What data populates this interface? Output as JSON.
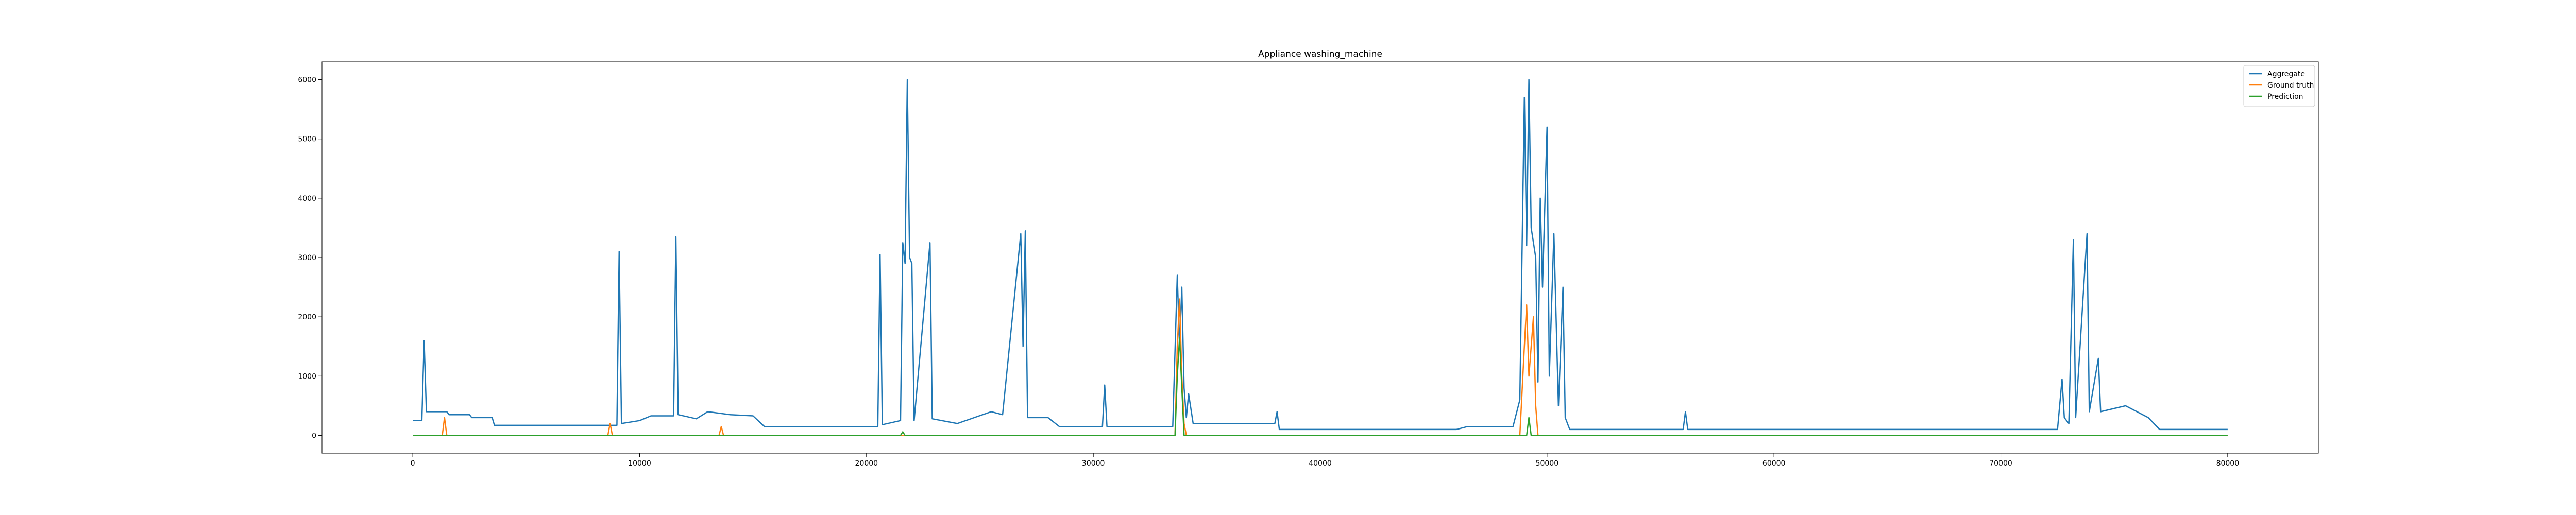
{
  "chart_data": {
    "type": "line",
    "title": "Appliance washing_machine",
    "xlabel": "",
    "ylabel": "",
    "xlim": [
      -4000,
      84000
    ],
    "ylim": [
      -300,
      6300
    ],
    "xticks": [
      0,
      10000,
      20000,
      30000,
      40000,
      50000,
      60000,
      70000,
      80000
    ],
    "xtick_labels": [
      "0",
      "10000",
      "20000",
      "30000",
      "40000",
      "50000",
      "60000",
      "70000",
      "80000"
    ],
    "yticks": [
      0,
      1000,
      2000,
      3000,
      4000,
      5000,
      6000
    ],
    "ytick_labels": [
      "0",
      "1000",
      "2000",
      "3000",
      "4000",
      "5000",
      "6000"
    ],
    "grid": false,
    "legend_position": "top-right",
    "series": [
      {
        "name": "Aggregate",
        "color": "#1f77b4",
        "points": [
          [
            0,
            250
          ],
          [
            400,
            250
          ],
          [
            500,
            1600
          ],
          [
            600,
            400
          ],
          [
            1500,
            400
          ],
          [
            1600,
            350
          ],
          [
            2500,
            350
          ],
          [
            2600,
            300
          ],
          [
            3500,
            300
          ],
          [
            3600,
            170
          ],
          [
            9000,
            170
          ],
          [
            9100,
            3100
          ],
          [
            9200,
            200
          ],
          [
            10000,
            250
          ],
          [
            10500,
            330
          ],
          [
            11500,
            330
          ],
          [
            11600,
            3350
          ],
          [
            11700,
            350
          ],
          [
            12500,
            280
          ],
          [
            13000,
            400
          ],
          [
            14000,
            350
          ],
          [
            15000,
            330
          ],
          [
            15500,
            150
          ],
          [
            20500,
            150
          ],
          [
            20600,
            3050
          ],
          [
            20700,
            180
          ],
          [
            21500,
            250
          ],
          [
            21600,
            3250
          ],
          [
            21700,
            2900
          ],
          [
            21800,
            6000
          ],
          [
            21900,
            3000
          ],
          [
            22000,
            2900
          ],
          [
            22100,
            250
          ],
          [
            22800,
            3250
          ],
          [
            22900,
            280
          ],
          [
            24000,
            200
          ],
          [
            25500,
            400
          ],
          [
            26000,
            350
          ],
          [
            26800,
            3400
          ],
          [
            26900,
            1500
          ],
          [
            27000,
            3450
          ],
          [
            27100,
            300
          ],
          [
            28000,
            300
          ],
          [
            28500,
            150
          ],
          [
            30400,
            150
          ],
          [
            30500,
            850
          ],
          [
            30600,
            150
          ],
          [
            33500,
            150
          ],
          [
            33700,
            2700
          ],
          [
            33800,
            1500
          ],
          [
            33900,
            2500
          ],
          [
            34000,
            800
          ],
          [
            34100,
            300
          ],
          [
            34200,
            700
          ],
          [
            34400,
            200
          ],
          [
            38000,
            200
          ],
          [
            38100,
            400
          ],
          [
            38200,
            100
          ],
          [
            46000,
            100
          ],
          [
            46500,
            150
          ],
          [
            48500,
            150
          ],
          [
            48800,
            600
          ],
          [
            49000,
            5700
          ],
          [
            49100,
            3200
          ],
          [
            49200,
            6000
          ],
          [
            49300,
            3500
          ],
          [
            49500,
            3000
          ],
          [
            49600,
            900
          ],
          [
            49700,
            4000
          ],
          [
            49800,
            2500
          ],
          [
            50000,
            5200
          ],
          [
            50100,
            1000
          ],
          [
            50300,
            3400
          ],
          [
            50500,
            500
          ],
          [
            50700,
            2500
          ],
          [
            50800,
            300
          ],
          [
            51000,
            100
          ],
          [
            56000,
            100
          ],
          [
            56100,
            400
          ],
          [
            56200,
            100
          ],
          [
            72500,
            100
          ],
          [
            72700,
            950
          ],
          [
            72800,
            300
          ],
          [
            73000,
            200
          ],
          [
            73200,
            3300
          ],
          [
            73300,
            300
          ],
          [
            73800,
            3400
          ],
          [
            73900,
            400
          ],
          [
            74300,
            1300
          ],
          [
            74400,
            400
          ],
          [
            75500,
            500
          ],
          [
            76500,
            300
          ],
          [
            77000,
            100
          ],
          [
            80000,
            100
          ]
        ]
      },
      {
        "name": "Ground truth",
        "color": "#ff7f0e",
        "points": [
          [
            0,
            0
          ],
          [
            1300,
            0
          ],
          [
            1400,
            300
          ],
          [
            1500,
            0
          ],
          [
            8600,
            0
          ],
          [
            8700,
            200
          ],
          [
            8800,
            0
          ],
          [
            13500,
            0
          ],
          [
            13600,
            150
          ],
          [
            13700,
            0
          ],
          [
            33600,
            0
          ],
          [
            33700,
            1500
          ],
          [
            33800,
            2300
          ],
          [
            33900,
            1000
          ],
          [
            34000,
            200
          ],
          [
            34100,
            0
          ],
          [
            48800,
            0
          ],
          [
            49000,
            1500
          ],
          [
            49100,
            2200
          ],
          [
            49200,
            1000
          ],
          [
            49400,
            2000
          ],
          [
            49500,
            500
          ],
          [
            49600,
            0
          ],
          [
            80000,
            0
          ]
        ]
      },
      {
        "name": "Prediction",
        "color": "#2ca02c",
        "points": [
          [
            0,
            0
          ],
          [
            21500,
            0
          ],
          [
            21600,
            60
          ],
          [
            21700,
            0
          ],
          [
            33600,
            0
          ],
          [
            33700,
            1000
          ],
          [
            33800,
            1650
          ],
          [
            33900,
            800
          ],
          [
            34000,
            0
          ],
          [
            49100,
            0
          ],
          [
            49200,
            300
          ],
          [
            49300,
            0
          ],
          [
            80000,
            0
          ]
        ]
      }
    ]
  }
}
